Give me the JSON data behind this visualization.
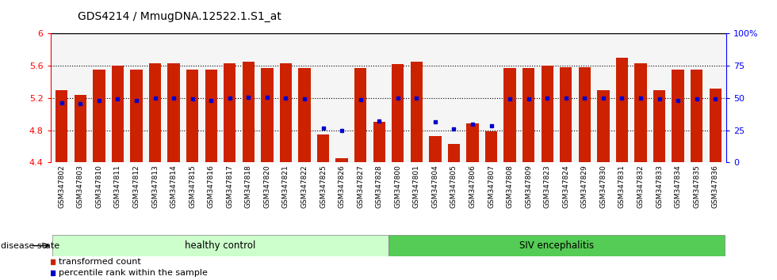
{
  "title": "GDS4214 / MmugDNA.12522.1.S1_at",
  "samples": [
    "GSM347802",
    "GSM347803",
    "GSM347810",
    "GSM347811",
    "GSM347812",
    "GSM347813",
    "GSM347814",
    "GSM347815",
    "GSM347816",
    "GSM347817",
    "GSM347818",
    "GSM347820",
    "GSM347821",
    "GSM347822",
    "GSM347825",
    "GSM347826",
    "GSM347827",
    "GSM347828",
    "GSM347800",
    "GSM347801",
    "GSM347804",
    "GSM347805",
    "GSM347806",
    "GSM347807",
    "GSM347808",
    "GSM347809",
    "GSM347823",
    "GSM347824",
    "GSM347829",
    "GSM347830",
    "GSM347831",
    "GSM347832",
    "GSM347833",
    "GSM347834",
    "GSM347835",
    "GSM347836"
  ],
  "bar_values": [
    5.3,
    5.24,
    5.55,
    5.6,
    5.55,
    5.63,
    5.63,
    5.55,
    5.55,
    5.63,
    5.65,
    5.57,
    5.63,
    5.57,
    4.75,
    4.45,
    5.57,
    4.9,
    5.62,
    5.65,
    4.73,
    4.63,
    4.88,
    4.79,
    5.57,
    5.57,
    5.6,
    5.58,
    5.58,
    5.3,
    5.7,
    5.63,
    5.3,
    5.55,
    5.55,
    5.32
  ],
  "percentile_values": [
    5.14,
    5.13,
    5.17,
    5.19,
    5.17,
    5.2,
    5.2,
    5.19,
    5.17,
    5.2,
    5.21,
    5.21,
    5.2,
    5.19,
    4.83,
    4.8,
    5.18,
    4.91,
    5.2,
    5.2,
    4.9,
    4.82,
    4.87,
    4.86,
    5.19,
    5.19,
    5.2,
    5.2,
    5.2,
    5.2,
    5.2,
    5.2,
    5.19,
    5.17,
    5.19,
    5.19
  ],
  "healthy_count": 18,
  "ylim_left": [
    4.4,
    6.0
  ],
  "ylim_right": [
    0,
    100
  ],
  "yticks_left": [
    4.4,
    4.8,
    5.2,
    5.6,
    6.0
  ],
  "yticks_right": [
    0,
    25,
    50,
    75,
    100
  ],
  "ytick_labels_left": [
    "4.4",
    "4.8",
    "5.2",
    "5.6",
    "6"
  ],
  "ytick_labels_right": [
    "0",
    "25",
    "50",
    "75",
    "100%"
  ],
  "bar_color": "#cc2200",
  "dot_color": "#0000cc",
  "healthy_color": "#ccffcc",
  "siv_color": "#55cc55",
  "healthy_label": "healthy control",
  "siv_label": "SIV encephalitis",
  "legend_transformed": "transformed count",
  "legend_percentile": "percentile rank within the sample",
  "disease_state_label": "disease state",
  "bar_bottom": 4.4,
  "bar_width": 0.65
}
